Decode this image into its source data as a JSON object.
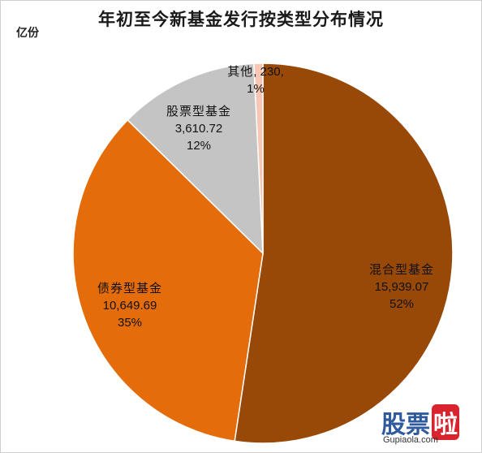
{
  "chart_data": {
    "type": "pie",
    "title": "年初至今新基金发行按类型分布情况",
    "unit_label": "亿份",
    "slices": [
      {
        "name": "混合型基金",
        "value": 15939.07,
        "value_label": "15,939.07",
        "percent_label": "52%",
        "color": "#984807"
      },
      {
        "name": "债券型基金",
        "value": 10649.69,
        "value_label": "10,649.69",
        "percent_label": "35%",
        "color": "#e46c0a"
      },
      {
        "name": "股票型基金",
        "value": 3610.72,
        "value_label": "3,610.72",
        "percent_label": "12%",
        "color": "#c4c4c4"
      },
      {
        "name": "其他",
        "value": 230,
        "value_label": "230",
        "percent_label": "1%",
        "color": "#f7c6b4"
      }
    ]
  },
  "watermark": {
    "text_part1": "股票",
    "text_part2": "啦",
    "url": "Gupiaola.com"
  }
}
